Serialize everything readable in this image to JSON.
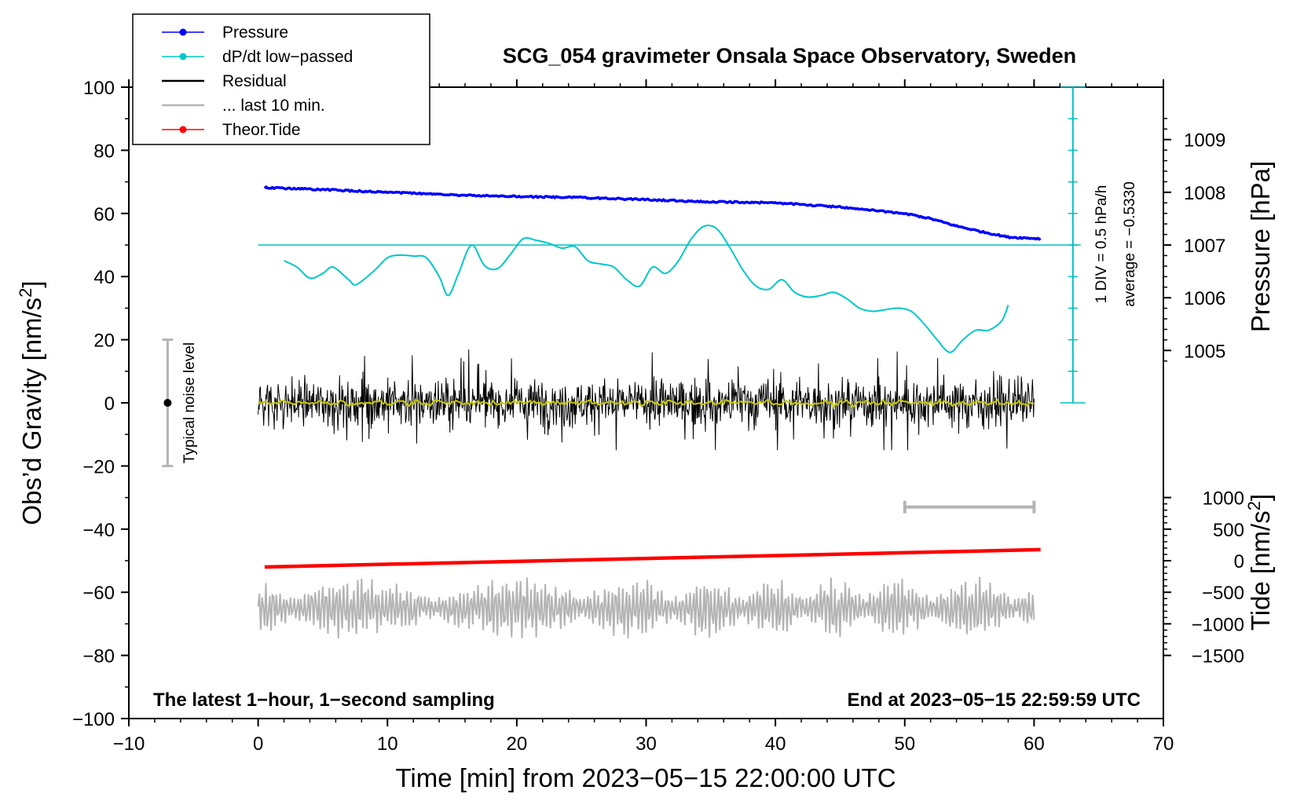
{
  "chart_data": {
    "type": "line",
    "title": "SCG_054 gravimeter Onsala Space Observatory, Sweden",
    "xlabel": "Time [min] from 2023−05−15 22:00:00 UTC",
    "ylabel_left": "Obs’d Gravity [nm/s²]",
    "ylabel_left_main": "Obs’d Gravity [nm/s",
    "ylabel_left_sup": "2",
    "ylabel_left_end": "]",
    "ylabel_pressure": "Pressure [hPa]",
    "ylabel_tide_main": "Tide [nm/s",
    "ylabel_tide_sup": "2",
    "ylabel_tide_end": "]",
    "xlim": [
      -10,
      70
    ],
    "ylim": [
      -100,
      100
    ],
    "x_ticks": [
      -10,
      0,
      10,
      20,
      30,
      40,
      50,
      60,
      70
    ],
    "x_tick_labels": [
      "−10",
      "0",
      "10",
      "20",
      "30",
      "40",
      "50",
      "60",
      "70"
    ],
    "y_ticks": [
      -100,
      -80,
      -60,
      -40,
      -20,
      0,
      20,
      40,
      60,
      80,
      100
    ],
    "y_tick_labels": [
      "−100",
      "−80",
      "−60",
      "−40",
      "−20",
      "0",
      "20",
      "40",
      "60",
      "80",
      "100"
    ],
    "pressure_axis": {
      "ticks": [
        1005,
        1006,
        1007,
        1008,
        1009
      ],
      "tick_labels": [
        "1005",
        "1006",
        "1007",
        "1008",
        "1009"
      ],
      "ref_value": 1007,
      "ref_gravity": 50,
      "gravity_per_hpa": 16.7
    },
    "tide_axis": {
      "ticks": [
        -1500,
        -1000,
        -500,
        0,
        500,
        1000
      ],
      "tick_labels": [
        "−1500",
        "−1000",
        "−500",
        "0",
        "500",
        "1000"
      ],
      "gravity_per_unit": 0.02,
      "gravity_at_zero": -50
    },
    "legend": [
      {
        "label": "Pressure",
        "color": "#0000ff",
        "marker": true
      },
      {
        "label": "dP/dt low−passed",
        "color": "#00c8c8",
        "marker": true
      },
      {
        "label": "Residual",
        "color": "#000000",
        "marker": false
      },
      {
        "label": "... last 10 min.",
        "color": "#b4b4b4",
        "marker": false
      },
      {
        "label": "Theor.Tide",
        "color": "#ff0000",
        "marker": true
      }
    ],
    "series": [
      {
        "name": "Pressure",
        "color": "#0000ff",
        "axis": "pressure_hPa",
        "x": [
          0.5,
          5,
          10,
          15,
          20,
          25,
          30,
          35,
          40,
          45,
          50,
          52,
          54,
          56,
          58,
          60.5
        ],
        "values": [
          1008.09,
          1008.05,
          1008.0,
          1007.95,
          1007.92,
          1007.9,
          1007.86,
          1007.82,
          1007.8,
          1007.72,
          1007.6,
          1007.5,
          1007.36,
          1007.25,
          1007.15,
          1007.12
        ]
      },
      {
        "name": "dP/dt low−passed",
        "color": "#00c8c8",
        "axis": "gravity",
        "x": [
          2,
          3,
          4,
          5,
          5.8,
          7,
          7.6,
          9,
          10,
          11,
          12,
          13,
          14,
          14.7,
          15.5,
          16.5,
          17.5,
          18.5,
          19.5,
          20.5,
          21.5,
          22.5,
          23.5,
          24.5,
          25.5,
          26.5,
          27.5,
          28.5,
          29.5,
          30.5,
          31.5,
          32.5,
          33.5,
          34.5,
          35.5,
          36.5,
          37.5,
          38.5,
          39.5,
          40.5,
          41.5,
          42.5,
          43.5,
          44.5,
          45.5,
          46.5,
          47.5,
          48.5,
          49.5,
          50.5,
          51.5,
          52.5,
          53.5,
          54.5,
          55.5,
          56.5,
          57.5,
          58
        ],
        "values": [
          45,
          43,
          39.5,
          41,
          43,
          39,
          37.5,
          42,
          46,
          46.8,
          46.5,
          46,
          40,
          34,
          41,
          50,
          43.5,
          42.5,
          47,
          52,
          51.5,
          50.5,
          49,
          49.5,
          45,
          44,
          43,
          39,
          37,
          43,
          41,
          45,
          52,
          56,
          55,
          49,
          42,
          37,
          36,
          39,
          35,
          33.5,
          34,
          35,
          33,
          30,
          29,
          29.5,
          30,
          29,
          25,
          20,
          16,
          20,
          23,
          23,
          26,
          31
        ]
      },
      {
        "name": "Residual",
        "color": "#000000",
        "axis": "gravity",
        "x_range": [
          0,
          60
        ],
        "mean": 0,
        "amplitude": 8,
        "outliers": [
          18,
          18,
          -15,
          -14
        ],
        "smoothed_color": "#c8c800"
      },
      {
        "name": "... last 10 min.",
        "color": "#b4b4b4",
        "axis": "gravity",
        "x_range": [
          0,
          60
        ],
        "mean": -65,
        "amplitude": 7,
        "min": -75.5,
        "max": -49
      },
      {
        "name": "Theor.Tide",
        "color": "#ff0000",
        "axis": "tide_nms2",
        "x": [
          0.5,
          60.5
        ],
        "values": [
          -100,
          175
        ]
      }
    ],
    "noise_bar": {
      "x": -7,
      "y": 0,
      "ylow": -20,
      "yhigh": 20,
      "label": "Typical noise level"
    },
    "scale_bar": {
      "x": 63,
      "ylow": 0,
      "yhigh": 100,
      "label_div": "1 DIV = 0.5 hPa/h",
      "label_avg": "average = −0.5330",
      "ref_line_y": 50
    },
    "period_bar": {
      "x_start": 50,
      "x_end": 60,
      "y": -33
    },
    "notes": {
      "left": "The latest 1−hour, 1−second sampling",
      "right": "End at 2023−05−15 22:59:59 UTC"
    }
  },
  "colors": {
    "pressure": "#0000ff",
    "dpdt": "#00c8c8",
    "residual": "#000000",
    "residual_smooth": "#c8c800",
    "last10": "#b4b4b4",
    "tide": "#ff0000",
    "noise_bar": "#b4b4b4",
    "scale": "#00c0c0"
  }
}
